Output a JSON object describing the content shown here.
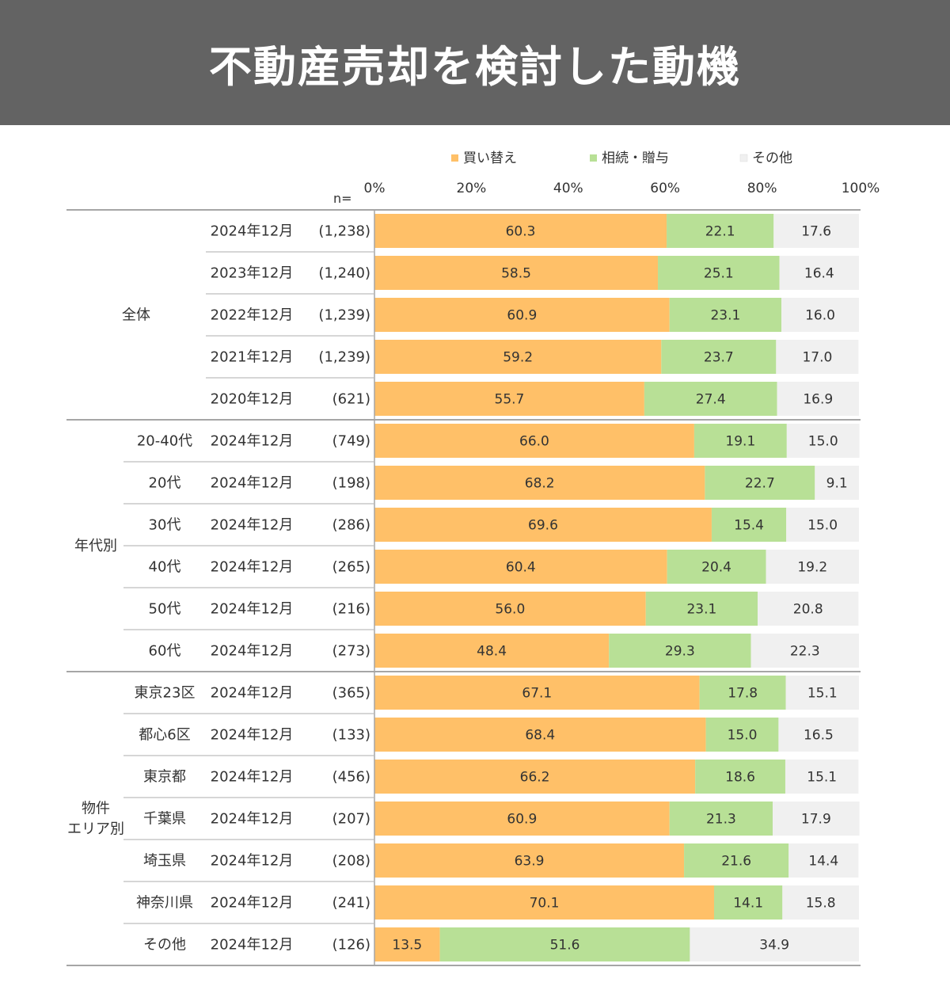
{
  "header": {
    "title": "不動産売却を検討した動機"
  },
  "colors": {
    "banner": "#636363",
    "buy": "#FFC068",
    "inherit": "#B8E096",
    "other": "#F0F0F0",
    "text": "#333333"
  },
  "chart_data": {
    "type": "bar",
    "orientation": "horizontal",
    "stacked": true,
    "percent": true,
    "xlim": [
      0,
      100
    ],
    "ticks": [
      "0%",
      "20%",
      "40%",
      "60%",
      "80%",
      "100%"
    ],
    "n_label": "n=",
    "legend": {
      "placement": "top"
    },
    "series": [
      {
        "name": "買い替え",
        "color": "#FFC068",
        "values": [
          60.3,
          58.5,
          60.9,
          59.2,
          55.7,
          66.0,
          68.2,
          69.6,
          60.4,
          56.0,
          48.4,
          67.1,
          68.4,
          66.2,
          60.9,
          63.9,
          70.1,
          13.5
        ]
      },
      {
        "name": "相続・贈与",
        "color": "#B8E096",
        "values": [
          22.1,
          25.1,
          23.1,
          23.7,
          27.4,
          19.1,
          22.7,
          15.4,
          20.4,
          23.1,
          29.3,
          17.8,
          15.0,
          18.6,
          21.3,
          21.6,
          14.1,
          51.6
        ]
      },
      {
        "name": "その他",
        "color": "#F0F0F0",
        "values": [
          17.6,
          16.4,
          16.0,
          17.0,
          16.9,
          15.0,
          9.1,
          15.0,
          19.2,
          20.8,
          22.3,
          15.1,
          16.5,
          15.1,
          17.9,
          14.4,
          15.8,
          34.9
        ]
      }
    ],
    "groups": [
      {
        "label": [
          "全体"
        ],
        "rows": [
          0,
          1,
          2,
          3,
          4
        ]
      },
      {
        "label": [
          "年代別"
        ],
        "rows": [
          5,
          6,
          7,
          8,
          9,
          10
        ]
      },
      {
        "label": [
          "物件",
          "エリア別"
        ],
        "rows": [
          11,
          12,
          13,
          14,
          15,
          16,
          17
        ]
      }
    ],
    "rows": [
      {
        "sub": "",
        "date": "2024年12月",
        "n": "(1,238)"
      },
      {
        "sub": "",
        "date": "2023年12月",
        "n": "(1,240)"
      },
      {
        "sub": "",
        "date": "2022年12月",
        "n": "(1,239)"
      },
      {
        "sub": "",
        "date": "2021年12月",
        "n": "(1,239)"
      },
      {
        "sub": "",
        "date": "2020年12月",
        "n": "(621)"
      },
      {
        "sub": "20-40代",
        "date": "2024年12月",
        "n": "(749)"
      },
      {
        "sub": "20代",
        "date": "2024年12月",
        "n": "(198)"
      },
      {
        "sub": "30代",
        "date": "2024年12月",
        "n": "(286)"
      },
      {
        "sub": "40代",
        "date": "2024年12月",
        "n": "(265)"
      },
      {
        "sub": "50代",
        "date": "2024年12月",
        "n": "(216)"
      },
      {
        "sub": "60代",
        "date": "2024年12月",
        "n": "(273)"
      },
      {
        "sub": "東京23区",
        "date": "2024年12月",
        "n": "(365)"
      },
      {
        "sub": "都心6区",
        "date": "2024年12月",
        "n": "(133)"
      },
      {
        "sub": "東京都",
        "date": "2024年12月",
        "n": "(456)"
      },
      {
        "sub": "千葉県",
        "date": "2024年12月",
        "n": "(207)"
      },
      {
        "sub": "埼玉県",
        "date": "2024年12月",
        "n": "(208)"
      },
      {
        "sub": "神奈川県",
        "date": "2024年12月",
        "n": "(241)"
      },
      {
        "sub": "その他",
        "date": "2024年12月",
        "n": "(126)"
      }
    ]
  }
}
